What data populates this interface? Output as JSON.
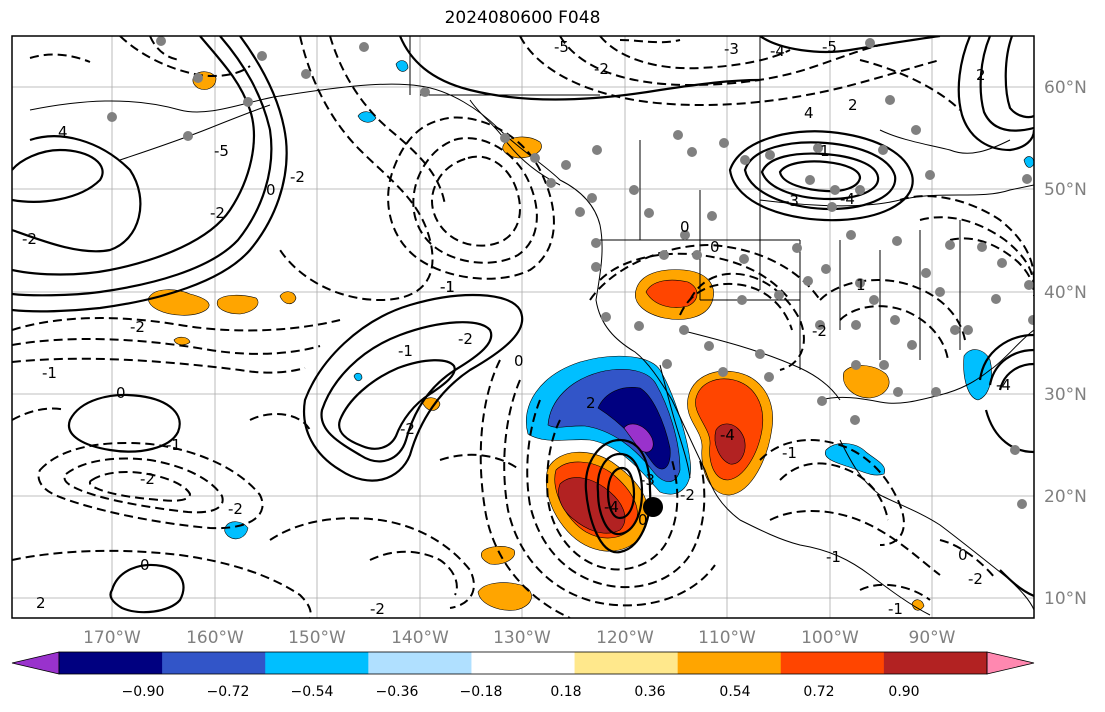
{
  "title": "2024080600 F048",
  "map": {
    "lon_labels": [
      "170°W",
      "160°W",
      "150°W",
      "140°W",
      "130°W",
      "120°W",
      "110°W",
      "100°W",
      "90°W"
    ],
    "lat_labels": [
      "60°N",
      "50°N",
      "40°N",
      "30°N",
      "20°N",
      "10°N"
    ],
    "contour_labels": [
      "4",
      "-2",
      "-2",
      "-1",
      "-2",
      "-1",
      "0",
      "-2",
      "0",
      "-1",
      "-2",
      "-1",
      "0",
      "-2",
      "-4",
      "-3",
      "-4",
      "-2",
      "0",
      "2",
      "-3",
      "-4",
      "1",
      "-5",
      "-4",
      "-5",
      "-3",
      "4",
      "2",
      "-1",
      "-2",
      "-2",
      "0",
      "-2",
      "0",
      "1",
      "0",
      "-1",
      "0",
      "-2",
      "2",
      "-2",
      "-5",
      "-1",
      "2",
      "-2",
      "-1",
      "-4"
    ],
    "marker": "storm-center"
  },
  "colorbar": {
    "tick_labels": [
      "−0.90",
      "−0.72",
      "−0.54",
      "−0.36",
      "−0.18",
      "0.18",
      "0.36",
      "0.54",
      "0.72",
      "0.90"
    ],
    "colors": [
      "#9932cc",
      "#000080",
      "#3255c8",
      "#00bfff",
      "#b0e0ff",
      "#ffffff",
      "#ffe88c",
      "#ffa500",
      "#ff4500",
      "#b22222",
      "#ff88b0"
    ]
  }
}
